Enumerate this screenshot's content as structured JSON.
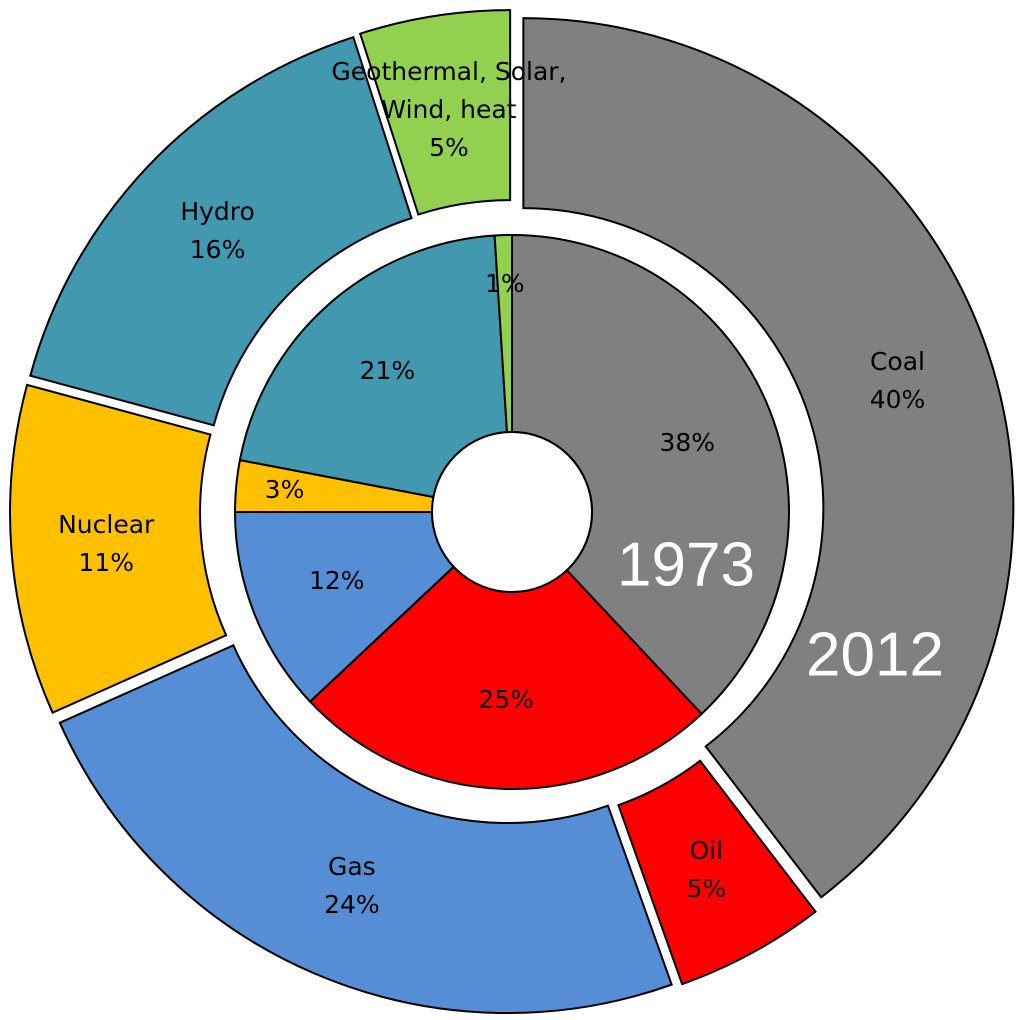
{
  "chart_data": {
    "type": "donut",
    "categories": [
      "Coal",
      "Oil",
      "Gas",
      "Nuclear",
      "Hydro",
      "Geothermal, Solar, Wind, heat"
    ],
    "colors": [
      "#808080",
      "#ff0000",
      "#558ed5",
      "#ffc000",
      "#4198af",
      "#92d050"
    ],
    "series": [
      {
        "name": "1973",
        "values": [
          38,
          25,
          12,
          3,
          21,
          1
        ],
        "value_labels": [
          "38%",
          "25%",
          "12%",
          "3%",
          "21%",
          "1%"
        ]
      },
      {
        "name": "2012",
        "values": [
          40,
          5,
          24,
          11,
          16,
          5
        ],
        "value_labels": [
          "40%",
          "5%",
          "24%",
          "11%",
          "16%",
          "5%"
        ]
      }
    ]
  }
}
